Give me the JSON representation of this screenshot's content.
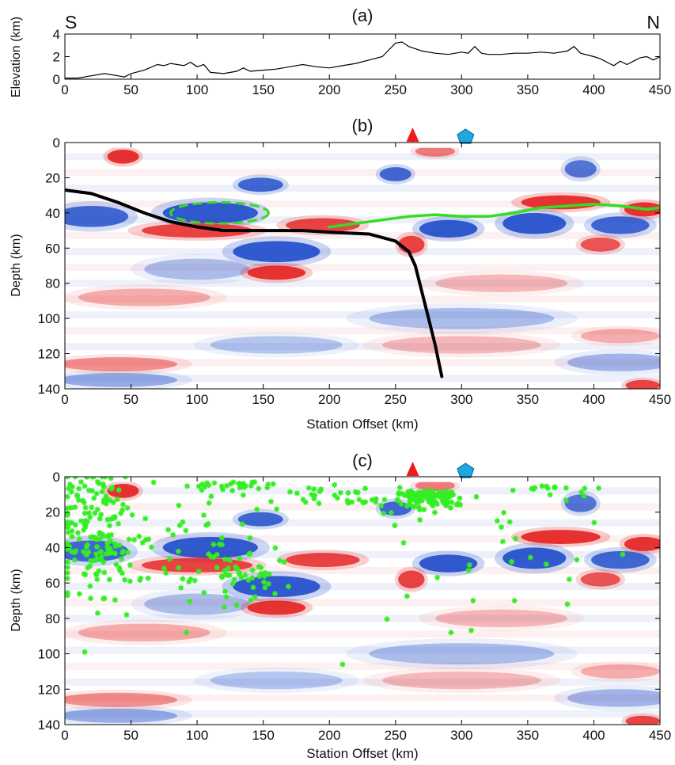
{
  "chart_data": [
    {
      "panel": "(a)",
      "type": "line",
      "ylabel": "Elevation (km)",
      "xlim": [
        0,
        450
      ],
      "ylim": [
        0,
        4
      ],
      "xticks": [
        "0",
        "50",
        "100",
        "150",
        "200",
        "250",
        "300",
        "350",
        "400",
        "450"
      ],
      "yticks": [
        "0",
        "2",
        "4"
      ],
      "corner_labels": {
        "left": "S",
        "right": "N"
      },
      "series": [
        {
          "x": [
            0,
            10,
            20,
            30,
            40,
            45,
            50,
            60,
            70,
            75,
            80,
            90,
            95,
            100,
            105,
            110,
            120,
            130,
            135,
            140,
            150,
            160,
            170,
            180,
            190,
            200,
            210,
            220,
            230,
            240,
            245,
            250,
            255,
            260,
            270,
            280,
            290,
            300,
            305,
            310,
            315,
            320,
            330,
            340,
            350,
            360,
            370,
            380,
            385,
            390,
            400,
            405,
            410,
            415,
            420,
            425,
            430,
            435,
            440,
            445,
            450
          ],
          "y": [
            0.1,
            0.1,
            0.3,
            0.5,
            0.3,
            0.2,
            0.5,
            0.8,
            1.3,
            1.2,
            1.4,
            1.2,
            1.5,
            1.1,
            1.3,
            0.6,
            0.5,
            0.7,
            1.0,
            0.7,
            0.8,
            0.9,
            1.1,
            1.3,
            1.1,
            1.0,
            1.2,
            1.4,
            1.7,
            2.0,
            2.6,
            3.2,
            3.3,
            2.9,
            2.5,
            2.3,
            2.2,
            2.4,
            2.3,
            2.9,
            2.3,
            2.2,
            2.2,
            2.3,
            2.3,
            2.4,
            2.3,
            2.5,
            2.9,
            2.3,
            2.0,
            1.8,
            1.5,
            1.2,
            1.6,
            1.3,
            1.6,
            1.9,
            2.0,
            1.7,
            2.0
          ]
        }
      ]
    },
    {
      "panel": "(b)",
      "type": "heatmap",
      "xlabel": "Station Offset (km)",
      "ylabel": "Depth (km)",
      "xlim": [
        0,
        450
      ],
      "ylim": [
        0,
        140
      ],
      "xticks": [
        "0",
        "50",
        "100",
        "150",
        "200",
        "250",
        "300",
        "350",
        "400",
        "450"
      ],
      "yticks": [
        "0",
        "20",
        "40",
        "60",
        "80",
        "100",
        "120",
        "140"
      ],
      "markers": [
        {
          "shape": "triangle",
          "x": 263,
          "color": "#ee1c1c"
        },
        {
          "shape": "pentagon",
          "x": 303,
          "color": "#1ea8e0"
        }
      ],
      "lines": [
        {
          "color": "#000000",
          "x": [
            0,
            20,
            40,
            60,
            80,
            100,
            120,
            150,
            180,
            200,
            230,
            250,
            260,
            265,
            270,
            275,
            280,
            285
          ],
          "y": [
            27,
            29,
            34,
            40,
            45,
            48,
            50,
            50,
            50,
            51,
            52,
            56,
            62,
            70,
            85,
            100,
            115,
            133
          ]
        },
        {
          "color": "#33dd22",
          "x": [
            200,
            220,
            240,
            260,
            280,
            300,
            320,
            340,
            360,
            380,
            400,
            420,
            440,
            450
          ],
          "y": [
            48,
            46,
            44,
            42,
            41,
            42,
            42,
            40,
            37,
            36,
            35,
            36,
            38,
            37
          ]
        }
      ],
      "ellipse": {
        "cx": 117,
        "cy": 40,
        "rx": 37,
        "ry": 6,
        "color": "#33dd22",
        "style": "dashed"
      },
      "anomalies": [
        {
          "cx": 110,
          "cy": 40,
          "rx": 36,
          "ry": 6,
          "sign": -1,
          "amp": 1.0
        },
        {
          "cx": 160,
          "cy": 62,
          "rx": 33,
          "ry": 6,
          "sign": -1,
          "amp": 1.0
        },
        {
          "cx": 148,
          "cy": 24,
          "rx": 17,
          "ry": 4,
          "sign": -1,
          "amp": 0.9
        },
        {
          "cx": 20,
          "cy": 42,
          "rx": 28,
          "ry": 6,
          "sign": -1,
          "amp": 0.9
        },
        {
          "cx": 290,
          "cy": 49,
          "rx": 22,
          "ry": 5,
          "sign": -1,
          "amp": 1.0
        },
        {
          "cx": 355,
          "cy": 46,
          "rx": 24,
          "ry": 6,
          "sign": -1,
          "amp": 1.0
        },
        {
          "cx": 420,
          "cy": 47,
          "rx": 22,
          "ry": 5,
          "sign": -1,
          "amp": 0.9
        },
        {
          "cx": 250,
          "cy": 18,
          "rx": 12,
          "ry": 4,
          "sign": -1,
          "amp": 0.9
        },
        {
          "cx": 390,
          "cy": 15,
          "rx": 12,
          "ry": 5,
          "sign": -1,
          "amp": 0.8
        },
        {
          "cx": 100,
          "cy": 72,
          "rx": 40,
          "ry": 6,
          "sign": -1,
          "amp": 0.35
        },
        {
          "cx": 300,
          "cy": 100,
          "rx": 70,
          "ry": 6,
          "sign": -1,
          "amp": 0.35
        },
        {
          "cx": 420,
          "cy": 125,
          "rx": 40,
          "ry": 5,
          "sign": -1,
          "amp": 0.4
        },
        {
          "cx": 40,
          "cy": 135,
          "rx": 45,
          "ry": 4,
          "sign": -1,
          "amp": 0.45
        },
        {
          "cx": 160,
          "cy": 115,
          "rx": 50,
          "ry": 5,
          "sign": -1,
          "amp": 0.3
        },
        {
          "cx": 44,
          "cy": 8,
          "rx": 12,
          "ry": 4,
          "sign": 1,
          "amp": 1.0
        },
        {
          "cx": 100,
          "cy": 50,
          "rx": 42,
          "ry": 4,
          "sign": 1,
          "amp": 0.9
        },
        {
          "cx": 195,
          "cy": 47,
          "rx": 28,
          "ry": 4,
          "sign": 1,
          "amp": 0.9
        },
        {
          "cx": 160,
          "cy": 74,
          "rx": 22,
          "ry": 4,
          "sign": 1,
          "amp": 1.0
        },
        {
          "cx": 262,
          "cy": 58,
          "rx": 10,
          "ry": 5,
          "sign": 1,
          "amp": 0.9
        },
        {
          "cx": 375,
          "cy": 34,
          "rx": 30,
          "ry": 4,
          "sign": 1,
          "amp": 1.0
        },
        {
          "cx": 438,
          "cy": 38,
          "rx": 15,
          "ry": 4,
          "sign": 1,
          "amp": 1.0
        },
        {
          "cx": 405,
          "cy": 58,
          "rx": 15,
          "ry": 4,
          "sign": 1,
          "amp": 0.8
        },
        {
          "cx": 437,
          "cy": 138,
          "rx": 13,
          "ry": 3,
          "sign": 1,
          "amp": 0.9
        },
        {
          "cx": 40,
          "cy": 126,
          "rx": 45,
          "ry": 4,
          "sign": 1,
          "amp": 0.5
        },
        {
          "cx": 300,
          "cy": 115,
          "rx": 60,
          "ry": 5,
          "sign": 1,
          "amp": 0.3
        },
        {
          "cx": 60,
          "cy": 88,
          "rx": 50,
          "ry": 5,
          "sign": 1,
          "amp": 0.35
        },
        {
          "cx": 330,
          "cy": 80,
          "rx": 50,
          "ry": 5,
          "sign": 1,
          "amp": 0.3
        },
        {
          "cx": 280,
          "cy": 5,
          "rx": 15,
          "ry": 3,
          "sign": 1,
          "amp": 0.6
        },
        {
          "cx": 420,
          "cy": 110,
          "rx": 30,
          "ry": 4,
          "sign": 1,
          "amp": 0.35
        }
      ]
    },
    {
      "panel": "(c)",
      "type": "heatmap",
      "xlabel": "Station Offset (km)",
      "ylabel": "Depth (km)",
      "xlim": [
        0,
        450
      ],
      "ylim": [
        0,
        140
      ],
      "xticks": [
        "0",
        "50",
        "100",
        "150",
        "200",
        "250",
        "300",
        "350",
        "400",
        "450"
      ],
      "yticks": [
        "0",
        "20",
        "40",
        "60",
        "80",
        "100",
        "120",
        "140"
      ],
      "markers": [
        {
          "shape": "triangle",
          "x": 263,
          "color": "#ee1c1c"
        },
        {
          "shape": "pentagon",
          "x": 303,
          "color": "#1ea8e0"
        }
      ],
      "anomalies_same_as_panel": "(b)",
      "scatter": {
        "color": "#33ee22",
        "clusters": [
          {
            "x": 20,
            "y": 28,
            "sx": 16,
            "sy": 18,
            "n": 150
          },
          {
            "x": 45,
            "y": 48,
            "sx": 18,
            "sy": 12,
            "n": 30
          },
          {
            "x": 130,
            "y": 55,
            "sx": 20,
            "sy": 8,
            "n": 60
          },
          {
            "x": 275,
            "y": 8,
            "sx": 15,
            "sy": 5,
            "n": 110
          },
          {
            "x": 220,
            "y": 6,
            "sx": 45,
            "sy": 6,
            "n": 40
          },
          {
            "x": 125,
            "y": 3,
            "sx": 25,
            "sy": 2,
            "n": 30
          },
          {
            "x": 300,
            "y": 40,
            "sx": 60,
            "sy": 20,
            "n": 25
          },
          {
            "x": 360,
            "y": 5,
            "sx": 20,
            "sy": 4,
            "n": 15
          },
          {
            "x": 100,
            "y": 30,
            "sx": 40,
            "sy": 15,
            "n": 25
          }
        ],
        "isolated": [
          [
            15,
            99
          ],
          [
            92,
            88
          ],
          [
            210,
            106
          ],
          [
            292,
            88
          ],
          [
            380,
            72
          ],
          [
            340,
            70
          ]
        ]
      }
    }
  ]
}
